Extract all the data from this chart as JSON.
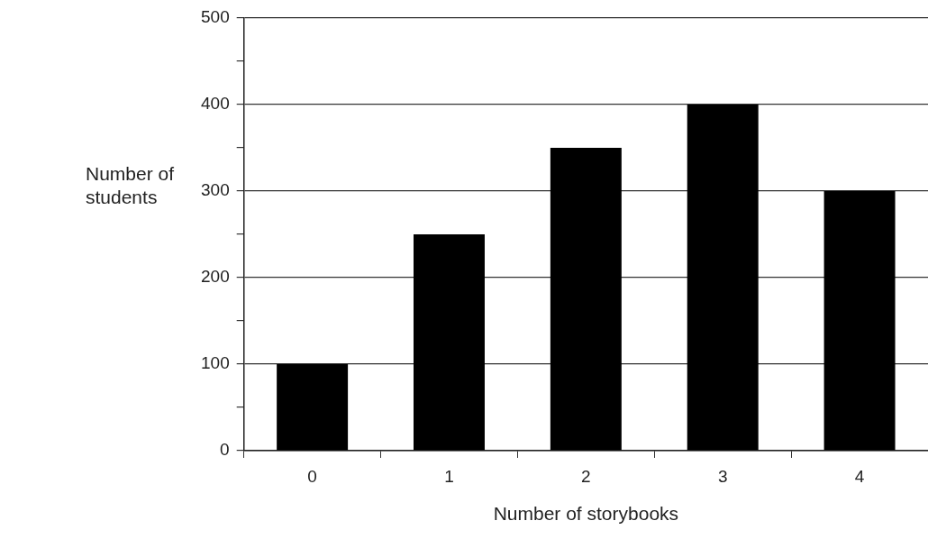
{
  "chart_data": {
    "type": "bar",
    "xlabel": "Number of storybooks",
    "ylabel": "Number of students",
    "categories": [
      "0",
      "1",
      "2",
      "3",
      "4"
    ],
    "values": [
      100,
      250,
      350,
      400,
      300
    ],
    "color": "#000000",
    "ylim": [
      0,
      500
    ],
    "yticks": [
      0,
      {
        "value": 50,
        "label": null
      },
      100,
      {
        "value": 150,
        "label": null
      },
      200,
      {
        "value": 250,
        "label": null
      },
      300,
      {
        "value": 350,
        "label": null
      },
      400,
      {
        "value": 450,
        "label": null
      },
      500
    ],
    "grid": "y",
    "legend": false
  }
}
